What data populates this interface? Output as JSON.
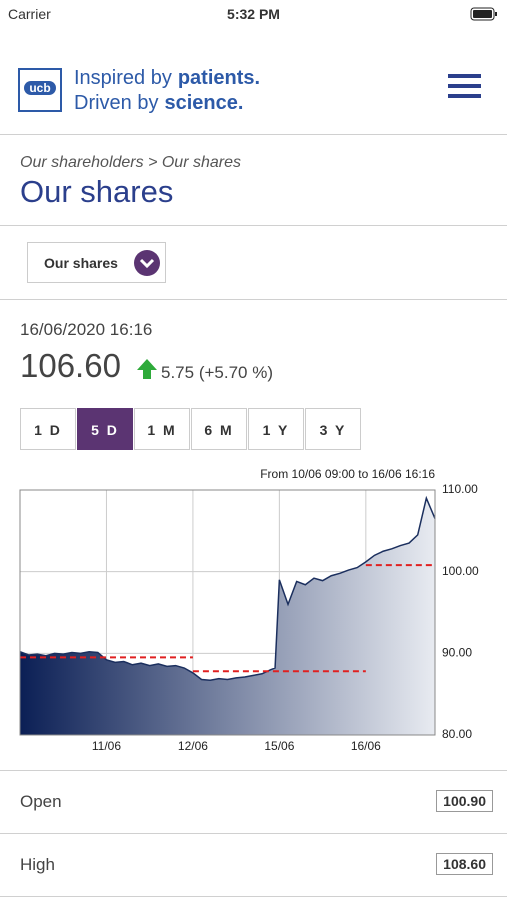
{
  "status_bar": {
    "carrier": "Carrier",
    "time": "5:32 PM"
  },
  "header": {
    "logo": "ucb",
    "tagline": [
      [
        "Inspired by",
        "patients."
      ],
      [
        "Driven by",
        "science."
      ]
    ]
  },
  "breadcrumb": "Our shareholders > Our shares",
  "page_title": "Our shares",
  "dropdown": "Our shares",
  "quote": {
    "datetime": "16/06/2020 16:16",
    "price": "106.60",
    "change": "5.75",
    "change_pct": "(+5.70 %)"
  },
  "periods": [
    {
      "label": "1 D",
      "selected": false
    },
    {
      "label": "5 D",
      "selected": true
    },
    {
      "label": "1 M",
      "selected": false
    },
    {
      "label": "6 M",
      "selected": false
    },
    {
      "label": "1 Y",
      "selected": false
    },
    {
      "label": "3 Y",
      "selected": false
    }
  ],
  "chart_data": {
    "type": "area",
    "subtitle": "From 10/06 09:00 to 16/06 16:16",
    "x": [
      0,
      0.1,
      0.2,
      0.3,
      0.4,
      0.5,
      0.6,
      0.7,
      0.8,
      0.9,
      1,
      1.1,
      1.2,
      1.3,
      1.4,
      1.5,
      1.6,
      1.7,
      1.8,
      1.9,
      2,
      2.1,
      2.2,
      2.3,
      2.4,
      2.5,
      2.6,
      2.7,
      2.8,
      2.9,
      2.95,
      3,
      3.1,
      3.2,
      3.3,
      3.4,
      3.5,
      3.6,
      3.7,
      3.8,
      3.9,
      4,
      4.1,
      4.2,
      4.3,
      4.4,
      4.5,
      4.6,
      4.7,
      4.8
    ],
    "series": [
      {
        "name": "UCB",
        "color": "#1b2f5e",
        "values": [
          90.2,
          89.8,
          89.9,
          89.7,
          90.0,
          89.9,
          90.1,
          90.0,
          90.2,
          90.1,
          89.2,
          88.9,
          89.0,
          88.6,
          88.8,
          88.5,
          88.7,
          88.4,
          88.5,
          88.2,
          87.6,
          86.8,
          86.7,
          86.9,
          86.8,
          87.0,
          87.1,
          87.3,
          87.5,
          88.0,
          88.2,
          99.0,
          96.0,
          98.8,
          98.4,
          99.2,
          98.9,
          99.5,
          99.8,
          100.2,
          100.5,
          101.2,
          102.0,
          102.5,
          102.8,
          103.2,
          103.5,
          104.5,
          109.0,
          106.5
        ]
      }
    ],
    "reference_lines": [
      {
        "value": 89.5,
        "from": 0,
        "to": 2
      },
      {
        "value": 87.8,
        "from": 2,
        "to": 4
      },
      {
        "value": 100.8,
        "from": 4,
        "to": 4.8
      }
    ],
    "reference_color": "#e02020",
    "xlim": [
      0,
      4.8
    ],
    "xticks": [
      {
        "value": 1,
        "label": "11/06"
      },
      {
        "value": 2,
        "label": "12/06"
      },
      {
        "value": 3,
        "label": "15/06"
      },
      {
        "value": 4,
        "label": "16/06"
      }
    ],
    "ylim": [
      80,
      110
    ],
    "yticks": [
      {
        "value": 80,
        "label": "80.00"
      },
      {
        "value": 90,
        "label": "90.00"
      },
      {
        "value": 100,
        "label": "100.00"
      },
      {
        "value": 110,
        "label": "110.00"
      }
    ],
    "grid": true
  },
  "stats": [
    {
      "label": "Open",
      "value": "100.90"
    },
    {
      "label": "High",
      "value": "108.60"
    }
  ]
}
